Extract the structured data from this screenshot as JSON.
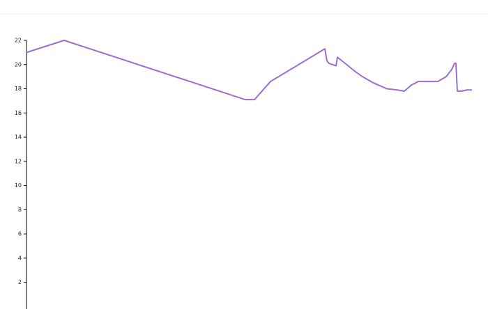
{
  "chart_data": {
    "type": "line",
    "x": [
      0,
      54,
      314,
      327,
      350,
      428,
      431,
      434,
      444,
      446,
      457,
      472,
      482,
      497,
      517,
      532,
      542,
      552,
      562,
      577,
      590,
      602,
      610,
      614,
      616,
      618,
      624,
      632,
      639
    ],
    "series": [
      {
        "color": "#9b6fcf",
        "values": [
          21.0,
          22.0,
          17.1,
          17.1,
          18.6,
          21.3,
          20.3,
          20.1,
          19.9,
          20.6,
          20.1,
          19.4,
          19.0,
          18.5,
          18.0,
          17.9,
          17.8,
          18.3,
          18.6,
          18.6,
          18.6,
          19.0,
          19.6,
          20.1,
          20.1,
          17.8,
          17.8,
          17.9,
          17.9
        ]
      }
    ],
    "xlim": [
      0,
      639
    ],
    "ylim": [
      0,
      22
    ],
    "yticks": [
      2,
      4,
      6,
      8,
      10,
      12,
      14,
      16,
      18,
      20,
      22
    ]
  }
}
